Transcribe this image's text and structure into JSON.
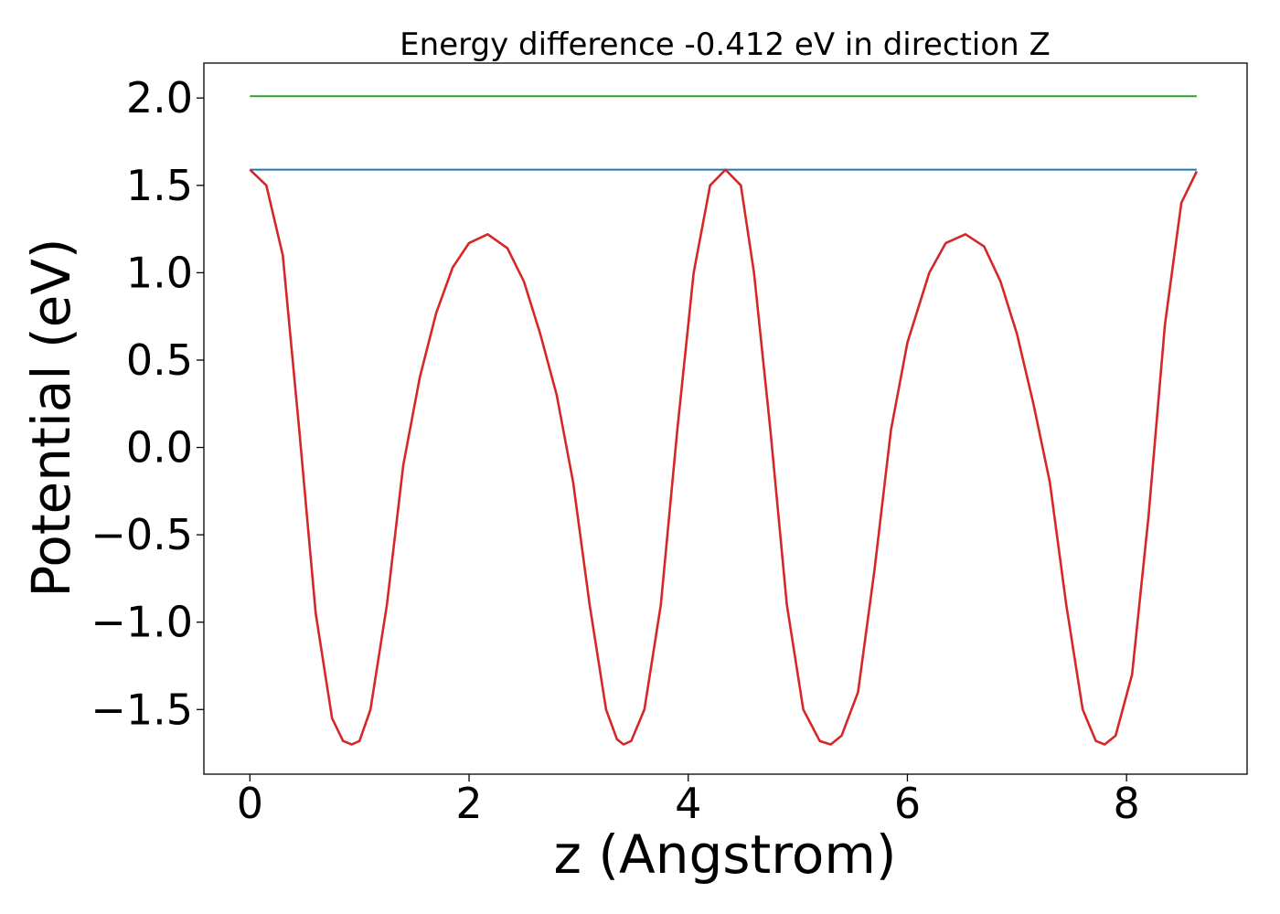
{
  "chart_data": {
    "type": "line",
    "title": "Energy difference -0.412 eV in direction Z",
    "xlabel": "z (Angstrom)",
    "ylabel": "Potential (eV)",
    "xlim": [
      -0.42,
      9.1
    ],
    "ylim": [
      -1.87,
      2.2
    ],
    "grid": false,
    "x_ticks": [
      0,
      2,
      4,
      6,
      8
    ],
    "y_ticks": [
      2.0,
      1.5,
      1.0,
      0.5,
      0.0,
      -0.5,
      -1.0,
      -1.5
    ],
    "x_tick_labels": [
      "0",
      "2",
      "4",
      "6",
      "8"
    ],
    "y_tick_labels": [
      "2.0",
      "1.5",
      "1.0",
      "0.5",
      "0.0",
      "−0.5",
      "−1.0",
      "−1.5"
    ],
    "series": [
      {
        "color": "#2ca02c",
        "x": [
          0,
          8.64
        ],
        "y": [
          2.01,
          2.01
        ]
      },
      {
        "color": "#1f77b4",
        "x": [
          0,
          8.64
        ],
        "y": [
          1.59,
          1.59
        ]
      },
      {
        "color": "#d62728",
        "x": [
          0.0,
          0.15,
          0.3,
          0.45,
          0.6,
          0.75,
          0.85,
          0.93,
          1.0,
          1.1,
          1.25,
          1.4,
          1.55,
          1.7,
          1.85,
          2.0,
          2.17,
          2.35,
          2.5,
          2.65,
          2.8,
          2.95,
          3.1,
          3.25,
          3.35,
          3.41,
          3.48,
          3.6,
          3.75,
          3.9,
          4.05,
          4.2,
          4.34,
          4.48,
          4.6,
          4.75,
          4.9,
          5.05,
          5.2,
          5.3,
          5.4,
          5.55,
          5.7,
          5.85,
          6.0,
          6.2,
          6.35,
          6.53,
          6.7,
          6.85,
          7.0,
          7.15,
          7.3,
          7.45,
          7.6,
          7.72,
          7.8,
          7.9,
          8.05,
          8.2,
          8.35,
          8.5,
          8.64
        ],
        "y": [
          1.59,
          1.5,
          1.1,
          0.1,
          -0.95,
          -1.55,
          -1.68,
          -1.7,
          -1.68,
          -1.5,
          -0.9,
          -0.1,
          0.4,
          0.77,
          1.03,
          1.17,
          1.22,
          1.14,
          0.95,
          0.65,
          0.3,
          -0.2,
          -0.9,
          -1.5,
          -1.67,
          -1.7,
          -1.68,
          -1.5,
          -0.9,
          0.1,
          1.0,
          1.5,
          1.59,
          1.5,
          1.0,
          0.1,
          -0.9,
          -1.5,
          -1.68,
          -1.7,
          -1.65,
          -1.4,
          -0.7,
          0.1,
          0.6,
          1.0,
          1.17,
          1.22,
          1.15,
          0.95,
          0.65,
          0.25,
          -0.2,
          -0.9,
          -1.5,
          -1.68,
          -1.7,
          -1.65,
          -1.3,
          -0.4,
          0.7,
          1.4,
          1.58
        ]
      }
    ]
  }
}
